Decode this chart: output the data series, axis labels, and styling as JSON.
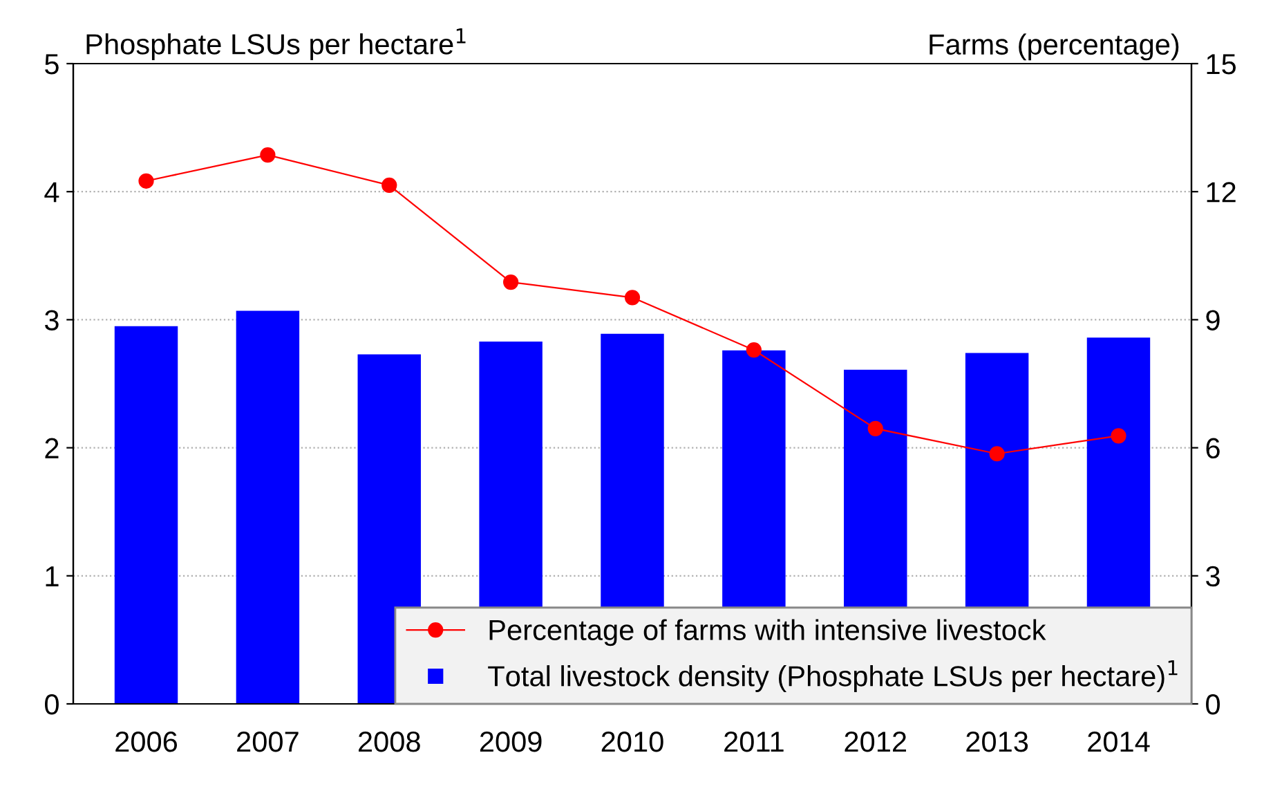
{
  "chart_data": {
    "type": "bar",
    "ylabel": "Phosphate LSUs per hectare$^{1}$",
    "y2label": "Farms (percentage)",
    "categories": [
      "2006",
      "2007",
      "2008",
      "2009",
      "2010",
      "2011",
      "2012",
      "2013",
      "2014"
    ],
    "series": [
      {
        "name": "Percentage of farms with intensive livestock",
        "type": "line",
        "axis": "y2",
        "color": "#ff0000",
        "values": [
          12.25,
          12.86,
          12.15,
          9.88,
          9.52,
          8.29,
          6.45,
          5.86,
          6.28
        ]
      },
      {
        "name": "Total livestock density (Phosphate LSUs per hectare)$^{1}$",
        "color": "#0000ff",
        "values": [
          2.95,
          3.07,
          2.73,
          2.83,
          2.89,
          2.76,
          2.61,
          2.74,
          2.86
        ]
      }
    ],
    "ylim": [
      0,
      5
    ],
    "yticks": [
      0,
      1,
      2,
      3,
      4,
      5
    ],
    "y2lim": [
      0,
      15
    ],
    "y2ticks": [
      0,
      3,
      6,
      9,
      12,
      15
    ],
    "grid": "y",
    "legend": "bottom right",
    "marker": "circle",
    "line_style": "solid"
  }
}
